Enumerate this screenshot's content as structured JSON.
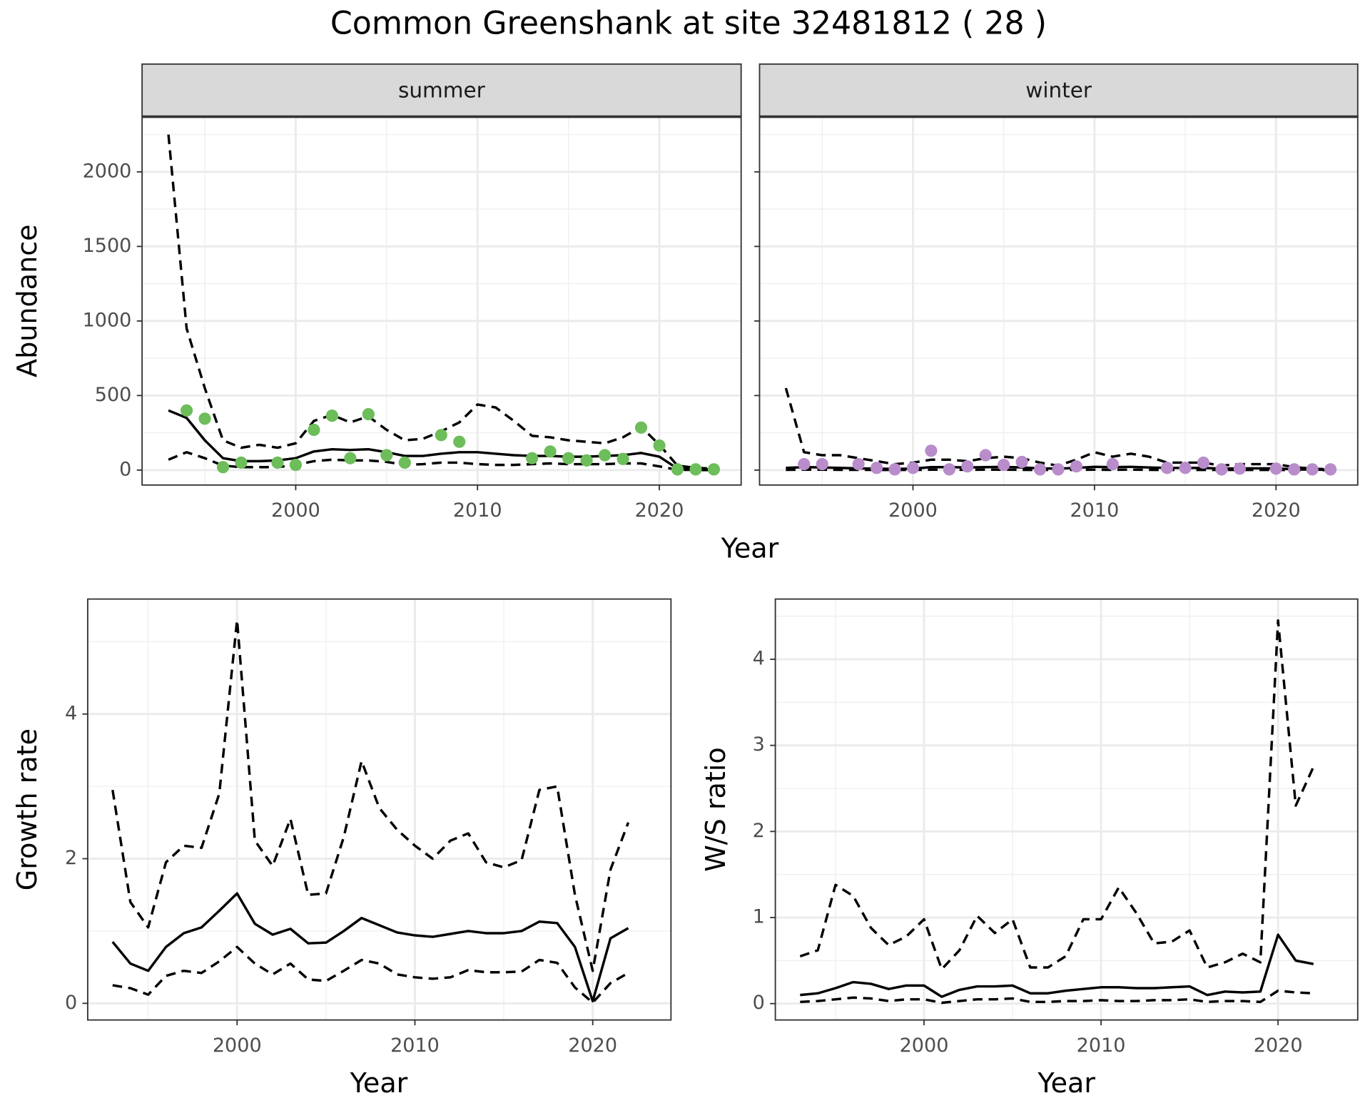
{
  "title": "Common Greenshank at site 32481812 ( 28 )",
  "chart_data": [
    {
      "type": "line",
      "strip": "summer",
      "x_label": "Year",
      "y_label": "Abundance",
      "x": [
        1993,
        1994,
        1995,
        1996,
        1997,
        1998,
        1999,
        2000,
        2001,
        2002,
        2003,
        2004,
        2005,
        2006,
        2007,
        2008,
        2009,
        2010,
        2011,
        2012,
        2013,
        2014,
        2015,
        2016,
        2017,
        2018,
        2019,
        2020,
        2021,
        2022,
        2023
      ],
      "xlim": [
        1991.55,
        2024.5
      ],
      "xticks": [
        2000,
        2010,
        2020
      ],
      "ylim": [
        -100,
        2370
      ],
      "yticks": [
        0,
        500,
        1000,
        1500,
        2000
      ],
      "grid": true,
      "minor_grid": true,
      "series": [
        {
          "color": "#000000",
          "dash": true,
          "values": [
            2250,
            950,
            550,
            200,
            150,
            170,
            150,
            180,
            330,
            370,
            320,
            360,
            270,
            200,
            210,
            260,
            320,
            440,
            420,
            330,
            230,
            220,
            200,
            190,
            180,
            220,
            290,
            170,
            30,
            15,
            10
          ]
        },
        {
          "color": "#000000",
          "dash": true,
          "values": [
            70,
            120,
            80,
            30,
            20,
            20,
            20,
            35,
            60,
            70,
            65,
            65,
            55,
            35,
            40,
            50,
            50,
            40,
            35,
            35,
            40,
            45,
            40,
            40,
            40,
            45,
            45,
            25,
            2,
            1,
            0
          ]
        },
        {
          "color": "#000000",
          "dash": false,
          "values": [
            400,
            350,
            200,
            80,
            60,
            60,
            65,
            80,
            125,
            140,
            135,
            140,
            120,
            95,
            95,
            110,
            120,
            120,
            110,
            100,
            95,
            95,
            90,
            90,
            95,
            100,
            115,
            90,
            10,
            5,
            5
          ]
        },
        {
          "color": "#6dbd5a",
          "mode": "markers",
          "values": [
            null,
            400,
            345,
            20,
            50,
            null,
            50,
            35,
            270,
            365,
            80,
            375,
            100,
            50,
            null,
            235,
            190,
            null,
            null,
            null,
            80,
            125,
            80,
            65,
            100,
            75,
            285,
            165,
            5,
            5,
            5
          ]
        }
      ]
    },
    {
      "type": "line",
      "strip": "winter",
      "y_tick_labels": false,
      "x": [
        1993,
        1994,
        1995,
        1996,
        1997,
        1998,
        1999,
        2000,
        2001,
        2002,
        2003,
        2004,
        2005,
        2006,
        2007,
        2008,
        2009,
        2010,
        2011,
        2012,
        2013,
        2014,
        2015,
        2016,
        2017,
        2018,
        2019,
        2020,
        2021,
        2022,
        2023
      ],
      "xlim": [
        1991.55,
        2024.5
      ],
      "xticks": [
        2000,
        2010,
        2020
      ],
      "ylim": [
        -100,
        2370
      ],
      "yticks": [
        0,
        500,
        1000,
        1500,
        2000
      ],
      "grid": true,
      "minor_grid": true,
      "series": [
        {
          "color": "#000000",
          "dash": true,
          "values": [
            550,
            120,
            100,
            100,
            80,
            60,
            40,
            50,
            70,
            70,
            60,
            80,
            90,
            80,
            50,
            30,
            70,
            120,
            90,
            110,
            90,
            50,
            50,
            50,
            30,
            40,
            40,
            40,
            20,
            10,
            5
          ]
        },
        {
          "color": "#000000",
          "dash": true,
          "values": [
            2,
            3,
            3,
            2,
            2,
            1,
            1,
            1,
            3,
            3,
            2,
            3,
            3,
            2,
            1,
            1,
            2,
            3,
            2,
            3,
            2,
            1,
            1,
            1,
            1,
            1,
            1,
            1,
            0,
            0,
            0
          ]
        },
        {
          "color": "#000000",
          "dash": false,
          "values": [
            15,
            20,
            18,
            15,
            12,
            10,
            8,
            10,
            20,
            20,
            18,
            20,
            22,
            18,
            12,
            10,
            15,
            22,
            20,
            22,
            18,
            15,
            15,
            15,
            10,
            12,
            12,
            12,
            5,
            3,
            2
          ]
        },
        {
          "color": "#b98ccb",
          "mode": "markers",
          "values": [
            null,
            40,
            40,
            null,
            40,
            15,
            5,
            15,
            130,
            5,
            25,
            100,
            35,
            55,
            5,
            5,
            25,
            null,
            40,
            null,
            null,
            15,
            15,
            50,
            5,
            10,
            null,
            10,
            5,
            5,
            5
          ]
        }
      ]
    },
    {
      "type": "line",
      "x_label": "Year",
      "y_label": "Growth rate",
      "x": [
        1993,
        1994,
        1995,
        1996,
        1997,
        1998,
        1999,
        2000,
        2001,
        2002,
        2003,
        2004,
        2005,
        2006,
        2007,
        2008,
        2009,
        2010,
        2011,
        2012,
        2013,
        2014,
        2015,
        2016,
        2017,
        2018,
        2019,
        2020,
        2021,
        2022
      ],
      "xlim": [
        1991.6,
        2024.4
      ],
      "xticks": [
        2000,
        2010,
        2020
      ],
      "ylim": [
        -0.23,
        5.59
      ],
      "yticks": [
        0,
        2,
        4
      ],
      "grid": true,
      "minor_grid": true,
      "series": [
        {
          "color": "#000000",
          "dash": true,
          "values": [
            2.95,
            1.4,
            1.05,
            1.95,
            2.18,
            2.15,
            2.9,
            5.3,
            2.25,
            1.9,
            2.55,
            1.5,
            1.52,
            2.3,
            3.35,
            2.7,
            2.4,
            2.18,
            2.0,
            2.25,
            2.35,
            1.95,
            1.88,
            1.98,
            2.95,
            3.0,
            1.5,
            0.45,
            1.85,
            2.5
          ]
        },
        {
          "color": "#000000",
          "dash": true,
          "values": [
            0.25,
            0.21,
            0.12,
            0.38,
            0.45,
            0.42,
            0.58,
            0.78,
            0.55,
            0.4,
            0.55,
            0.33,
            0.31,
            0.45,
            0.6,
            0.55,
            0.4,
            0.36,
            0.34,
            0.36,
            0.46,
            0.43,
            0.43,
            0.44,
            0.6,
            0.56,
            0.22,
            0.01,
            0.28,
            0.42
          ]
        },
        {
          "color": "#000000",
          "dash": false,
          "values": [
            0.85,
            0.55,
            0.45,
            0.78,
            0.97,
            1.05,
            1.28,
            1.52,
            1.1,
            0.95,
            1.03,
            0.83,
            0.84,
            1.0,
            1.18,
            1.08,
            0.98,
            0.94,
            0.92,
            0.96,
            1.0,
            0.97,
            0.97,
            1.0,
            1.13,
            1.11,
            0.78,
            0.03,
            0.9,
            1.04
          ]
        }
      ]
    },
    {
      "type": "line",
      "x_label": "Year",
      "y_label": "W/S ratio",
      "x": [
        1993,
        1994,
        1995,
        1996,
        1997,
        1998,
        1999,
        2000,
        2001,
        2002,
        2003,
        2004,
        2005,
        2006,
        2007,
        2008,
        2009,
        2010,
        2011,
        2012,
        2013,
        2014,
        2015,
        2016,
        2017,
        2018,
        2019,
        2020,
        2021,
        2022
      ],
      "xlim": [
        1991.6,
        2024.5
      ],
      "xticks": [
        2000,
        2010,
        2020
      ],
      "ylim": [
        -0.19,
        4.7
      ],
      "yticks": [
        0,
        1,
        2,
        3,
        4
      ],
      "grid": true,
      "minor_grid": true,
      "series": [
        {
          "color": "#000000",
          "dash": true,
          "values": [
            0.55,
            0.62,
            1.38,
            1.25,
            0.88,
            0.68,
            0.78,
            0.98,
            0.4,
            0.62,
            1.02,
            0.82,
            0.98,
            0.42,
            0.42,
            0.55,
            0.98,
            0.98,
            1.35,
            1.05,
            0.7,
            0.72,
            0.85,
            0.42,
            0.48,
            0.58,
            0.48,
            4.45,
            2.3,
            2.75
          ]
        },
        {
          "color": "#000000",
          "dash": true,
          "values": [
            0.02,
            0.03,
            0.05,
            0.07,
            0.06,
            0.03,
            0.05,
            0.05,
            0.01,
            0.03,
            0.05,
            0.05,
            0.06,
            0.02,
            0.02,
            0.03,
            0.03,
            0.04,
            0.03,
            0.03,
            0.04,
            0.04,
            0.05,
            0.02,
            0.03,
            0.03,
            0.02,
            0.15,
            0.13,
            0.12
          ]
        },
        {
          "color": "#000000",
          "dash": false,
          "values": [
            0.1,
            0.12,
            0.18,
            0.25,
            0.23,
            0.17,
            0.21,
            0.21,
            0.08,
            0.16,
            0.2,
            0.2,
            0.21,
            0.12,
            0.12,
            0.15,
            0.17,
            0.19,
            0.19,
            0.18,
            0.18,
            0.19,
            0.2,
            0.1,
            0.14,
            0.13,
            0.14,
            0.8,
            0.5,
            0.46
          ]
        }
      ]
    }
  ]
}
